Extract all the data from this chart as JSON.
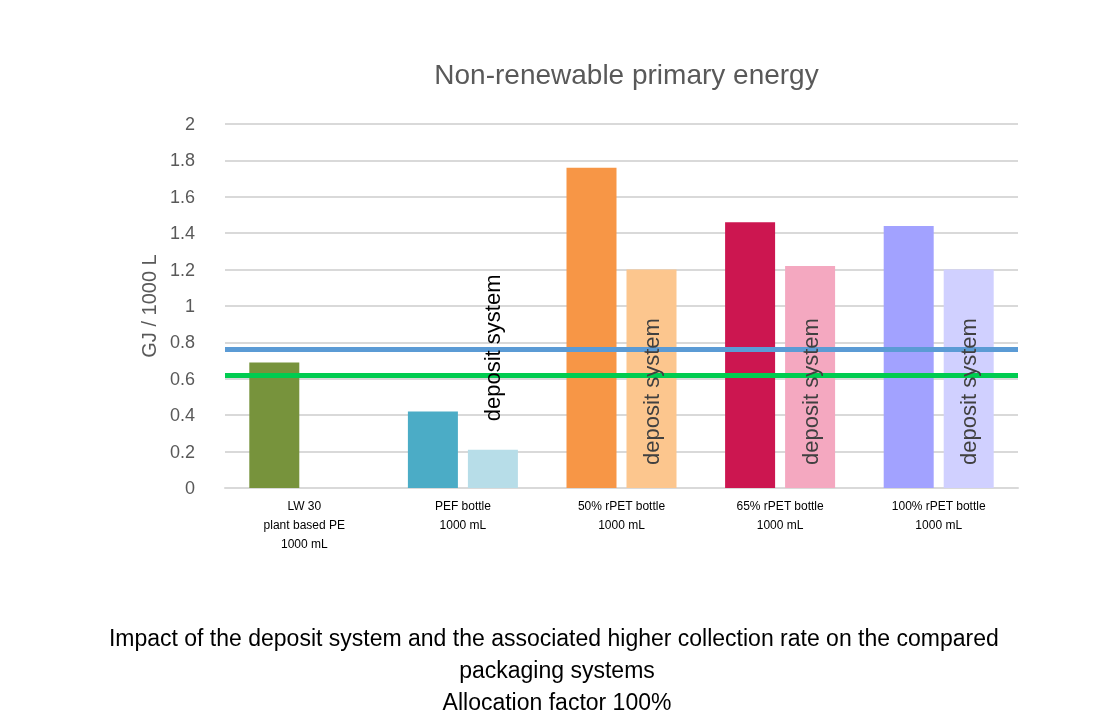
{
  "chart_data": {
    "type": "bar",
    "title": "Non-renewable primary energy",
    "ylabel": "GJ / 1000 L",
    "categories": [
      "LW 30\nplant based PE\n1000 mL",
      "PEF bottle\n1000 mL",
      "50% rPET bottle\n1000 mL",
      "65% rPET bottle\n1000 mL",
      "100% rPET bottle\n1000 mL"
    ],
    "series": [
      {
        "colors": [
          "#77933c",
          "#4bacc6",
          "#f79646",
          "#cc1650",
          "#a2a2ff"
        ],
        "values": [
          0.69,
          0.42,
          1.76,
          1.46,
          1.44
        ]
      },
      {
        "colors": [
          "#b7dde8",
          "#b7dde8",
          "#fcc68e",
          "#f4a8c0",
          "#d0d0ff"
        ],
        "values": [
          null,
          0.21,
          1.2,
          1.22,
          1.2
        ]
      }
    ],
    "ylim": [
      0,
      2
    ],
    "yticks": [
      0,
      0.2,
      0.4,
      0.6,
      0.8,
      1,
      1.2,
      1.4,
      1.6,
      1.8,
      2
    ],
    "grid": "y",
    "ref_lines": [
      {
        "axis": "y",
        "value": 0.76,
        "color": "#5b9bd5"
      },
      {
        "axis": "y",
        "value": 0.62,
        "color": "#00cc50"
      }
    ],
    "annotations": [
      {
        "text": "deposit system",
        "x": "PEF bottle\n1000 mL",
        "y": 0.77
      },
      {
        "text": "deposit system",
        "x": "50% rPET bottle\n1000 mL",
        "y": 0.53
      },
      {
        "text": "deposit system",
        "x": "65% rPET bottle\n1000 mL",
        "y": 0.53
      },
      {
        "text": "deposit system",
        "x": "100% rPET bottle\n1000 mL",
        "y": 0.53
      },
      "Impact of the deposit system and the associated higher collection rate on the compared packaging systems\nAllocation factor 100%"
    ]
  }
}
